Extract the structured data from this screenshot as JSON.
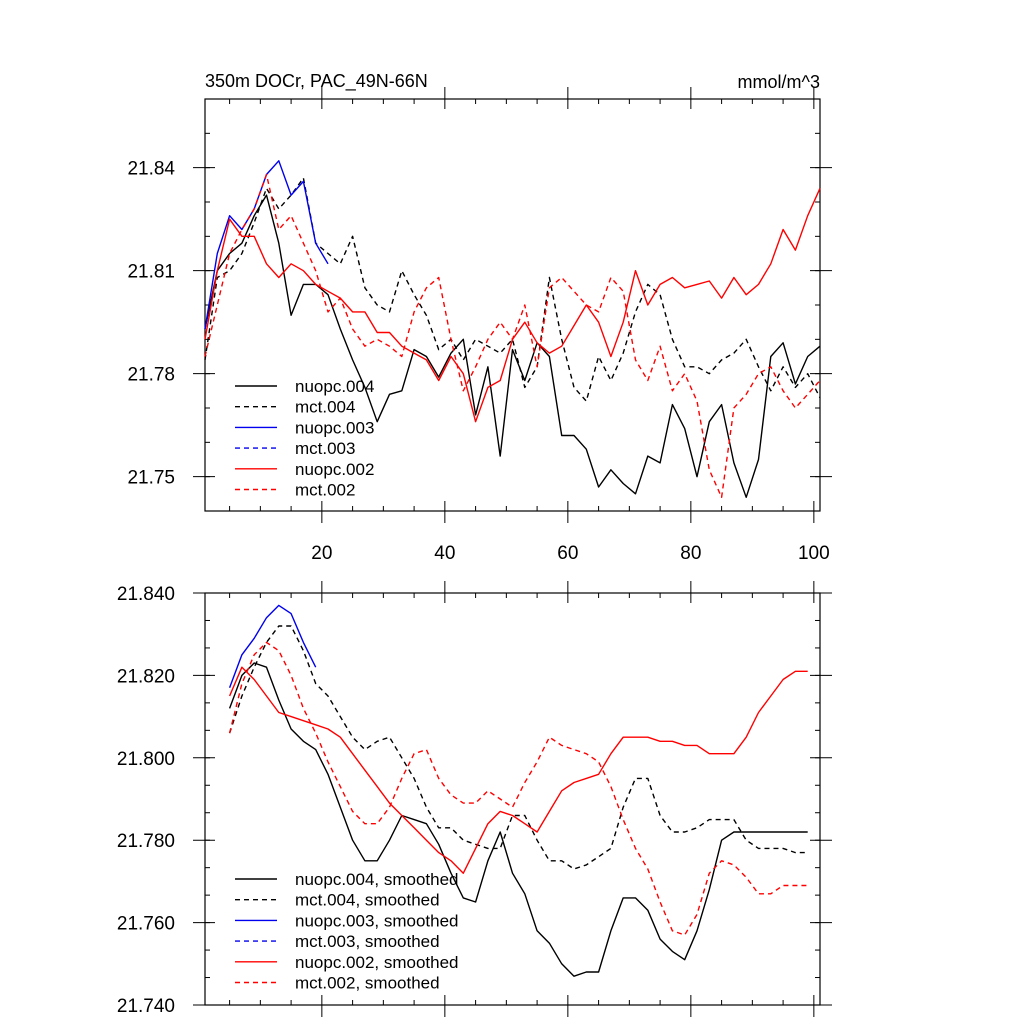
{
  "chart_data": [
    {
      "type": "line",
      "title": "350m DOCr, PAC_49N-66N",
      "units": "mmol/m^3",
      "xlim": [
        1,
        101
      ],
      "ylim": [
        21.74,
        21.86
      ],
      "xticks": [
        20,
        40,
        60,
        80,
        100
      ],
      "yticks": [
        21.75,
        21.78,
        21.81,
        21.84
      ],
      "ytick_labels": [
        "21.75",
        "21.78",
        "21.81",
        "21.84"
      ],
      "legend_position": "bottom-left",
      "series": [
        {
          "name": "nuopc.004",
          "color": "#000000",
          "dash": "solid",
          "x": [
            1,
            3,
            5,
            7,
            9,
            11,
            13,
            15,
            17,
            19,
            21,
            23,
            25,
            27,
            29,
            31,
            33,
            35,
            37,
            39,
            41,
            43,
            45,
            47,
            49,
            51,
            53,
            55,
            57,
            59,
            61,
            63,
            65,
            67,
            69,
            71,
            73,
            75,
            77,
            79,
            81,
            83,
            85,
            87,
            89,
            91,
            93,
            95,
            97,
            99,
            101
          ],
          "y": [
            21.793,
            21.81,
            21.815,
            21.818,
            21.826,
            21.832,
            21.818,
            21.797,
            21.806,
            21.806,
            21.803,
            21.793,
            21.784,
            21.776,
            21.766,
            21.774,
            21.775,
            21.787,
            21.785,
            21.779,
            21.786,
            21.79,
            21.768,
            21.782,
            21.756,
            21.787,
            21.778,
            21.789,
            21.785,
            21.762,
            21.762,
            21.758,
            21.747,
            21.752,
            21.748,
            21.745,
            21.756,
            21.754,
            21.771,
            21.764,
            21.75,
            21.766,
            21.771,
            21.754,
            21.744,
            21.755,
            21.785,
            21.789,
            21.777,
            21.785,
            21.788
          ]
        },
        {
          "name": "mct.004",
          "color": "#000000",
          "dash": "dashed",
          "x": [
            1,
            3,
            5,
            7,
            9,
            11,
            13,
            15,
            17,
            19,
            21,
            23,
            25,
            27,
            29,
            31,
            33,
            35,
            37,
            39,
            41,
            43,
            45,
            47,
            49,
            51,
            53,
            55,
            57,
            59,
            61,
            63,
            65,
            67,
            69,
            71,
            73,
            75,
            77,
            79,
            81,
            83,
            85,
            87,
            89,
            91,
            93,
            95,
            97,
            99,
            101
          ],
          "y": [
            21.784,
            21.808,
            21.81,
            21.815,
            21.824,
            21.834,
            21.828,
            21.832,
            21.837,
            21.818,
            21.815,
            21.812,
            21.82,
            21.805,
            21.8,
            21.798,
            21.81,
            21.803,
            21.797,
            21.787,
            21.79,
            21.784,
            21.79,
            21.788,
            21.786,
            21.79,
            21.776,
            21.782,
            21.808,
            21.79,
            21.776,
            21.772,
            21.785,
            21.778,
            21.786,
            21.798,
            21.806,
            21.803,
            21.79,
            21.782,
            21.782,
            21.78,
            21.784,
            21.786,
            21.79,
            21.782,
            21.775,
            21.782,
            21.776,
            21.78,
            21.773
          ]
        },
        {
          "name": "nuopc.003",
          "color": "#0000ee",
          "dash": "solid",
          "x": [
            1,
            3,
            5,
            7,
            9,
            11,
            13,
            15,
            17,
            19,
            21
          ],
          "y": [
            21.793,
            21.815,
            21.826,
            21.822,
            21.828,
            21.838,
            21.842,
            21.832,
            21.836,
            21.818,
            21.812
          ]
        },
        {
          "name": "mct.003",
          "color": "#0000ee",
          "dash": "dashed",
          "x": [],
          "y": []
        },
        {
          "name": "nuopc.002",
          "color": "#ff0000",
          "dash": "solid",
          "x": [
            1,
            3,
            5,
            7,
            9,
            11,
            13,
            15,
            17,
            19,
            21,
            23,
            25,
            27,
            29,
            31,
            33,
            35,
            37,
            39,
            41,
            43,
            45,
            47,
            49,
            51,
            53,
            55,
            57,
            59,
            61,
            63,
            65,
            67,
            69,
            71,
            73,
            75,
            77,
            79,
            81,
            83,
            85,
            87,
            89,
            91,
            93,
            95,
            97,
            99,
            101
          ],
          "y": [
            21.79,
            21.81,
            21.825,
            21.82,
            21.82,
            21.812,
            21.808,
            21.812,
            21.81,
            21.806,
            21.804,
            21.802,
            21.798,
            21.798,
            21.792,
            21.792,
            21.788,
            21.786,
            21.784,
            21.778,
            21.785,
            21.78,
            21.766,
            21.776,
            21.778,
            21.79,
            21.795,
            21.789,
            21.786,
            21.788,
            21.794,
            21.8,
            21.795,
            21.785,
            21.795,
            21.81,
            21.8,
            21.806,
            21.808,
            21.805,
            21.806,
            21.807,
            21.802,
            21.808,
            21.803,
            21.806,
            21.812,
            21.822,
            21.816,
            21.826,
            21.834
          ]
        },
        {
          "name": "mct.002",
          "color": "#ff0000",
          "dash": "dashed",
          "x": [
            1,
            3,
            5,
            7,
            9,
            11,
            13,
            15,
            17,
            19,
            21,
            23,
            25,
            27,
            29,
            31,
            33,
            35,
            37,
            39,
            41,
            43,
            45,
            47,
            49,
            51,
            53,
            55,
            57,
            59,
            61,
            63,
            65,
            67,
            69,
            71,
            73,
            75,
            77,
            79,
            81,
            83,
            85,
            87,
            89,
            91,
            93,
            95,
            97,
            99,
            101
          ],
          "y": [
            21.785,
            21.8,
            21.815,
            21.822,
            21.828,
            21.838,
            21.822,
            21.826,
            21.818,
            21.81,
            21.798,
            21.802,
            21.793,
            21.788,
            21.79,
            21.788,
            21.785,
            21.798,
            21.805,
            21.808,
            21.79,
            21.775,
            21.782,
            21.79,
            21.795,
            21.79,
            21.8,
            21.782,
            21.805,
            21.808,
            21.804,
            21.8,
            21.798,
            21.808,
            21.804,
            21.784,
            21.778,
            21.788,
            21.775,
            21.78,
            21.772,
            21.752,
            21.744,
            21.77,
            21.774,
            21.78,
            21.782,
            21.775,
            21.77,
            21.774,
            21.778
          ]
        }
      ]
    },
    {
      "type": "line",
      "xlim": [
        1,
        101
      ],
      "ylim": [
        21.74,
        21.84
      ],
      "xticks": [
        20,
        40,
        60,
        80,
        100
      ],
      "yticks": [
        21.74,
        21.76,
        21.78,
        21.8,
        21.82,
        21.84
      ],
      "ytick_labels": [
        "21.740",
        "21.760",
        "21.780",
        "21.800",
        "21.820",
        "21.840"
      ],
      "legend_position": "bottom-left",
      "series": [
        {
          "name": "nuopc.004, smoothed",
          "color": "#000000",
          "dash": "solid",
          "x": [
            5,
            7,
            9,
            11,
            13,
            15,
            17,
            19,
            21,
            23,
            25,
            27,
            29,
            31,
            33,
            35,
            37,
            39,
            41,
            43,
            45,
            47,
            49,
            51,
            53,
            55,
            57,
            59,
            61,
            63,
            65,
            67,
            69,
            71,
            73,
            75,
            77,
            79,
            81,
            83,
            85,
            87,
            89,
            91,
            93,
            95,
            97,
            99
          ],
          "y": [
            21.812,
            21.82,
            21.823,
            21.822,
            21.814,
            21.807,
            21.804,
            21.802,
            21.796,
            21.788,
            21.78,
            21.775,
            21.775,
            21.78,
            21.786,
            21.785,
            21.784,
            21.779,
            21.772,
            21.766,
            21.765,
            21.775,
            21.782,
            21.772,
            21.767,
            21.758,
            21.755,
            21.75,
            21.747,
            21.748,
            21.748,
            21.758,
            21.766,
            21.766,
            21.763,
            21.756,
            21.753,
            21.751,
            21.758,
            21.768,
            21.78,
            21.782,
            21.782,
            21.782,
            21.782,
            21.782,
            21.782,
            21.782
          ]
        },
        {
          "name": "mct.004, smoothed",
          "color": "#000000",
          "dash": "dashed",
          "x": [
            5,
            7,
            9,
            11,
            13,
            15,
            17,
            19,
            21,
            23,
            25,
            27,
            29,
            31,
            33,
            35,
            37,
            39,
            41,
            43,
            45,
            47,
            49,
            51,
            53,
            55,
            57,
            59,
            61,
            63,
            65,
            67,
            69,
            71,
            73,
            75,
            77,
            79,
            81,
            83,
            85,
            87,
            89,
            91,
            93,
            95,
            97,
            99
          ],
          "y": [
            21.806,
            21.815,
            21.822,
            21.828,
            21.832,
            21.832,
            21.826,
            21.818,
            21.815,
            21.81,
            21.805,
            21.802,
            21.804,
            21.805,
            21.8,
            21.795,
            21.788,
            21.783,
            21.783,
            21.78,
            21.779,
            21.778,
            21.778,
            21.786,
            21.786,
            21.78,
            21.775,
            21.775,
            21.773,
            21.774,
            21.776,
            21.778,
            21.788,
            21.795,
            21.795,
            21.786,
            21.782,
            21.782,
            21.783,
            21.785,
            21.785,
            21.785,
            21.78,
            21.778,
            21.778,
            21.778,
            21.777,
            21.777
          ]
        },
        {
          "name": "nuopc.003, smoothed",
          "color": "#0000ee",
          "dash": "solid",
          "x": [
            5,
            7,
            9,
            11,
            13,
            15,
            17,
            19
          ],
          "y": [
            21.817,
            21.825,
            21.829,
            21.834,
            21.837,
            21.835,
            21.828,
            21.822
          ]
        },
        {
          "name": "mct.003, smoothed",
          "color": "#0000ee",
          "dash": "dashed",
          "x": [],
          "y": []
        },
        {
          "name": "nuopc.002, smoothed",
          "color": "#ff0000",
          "dash": "solid",
          "x": [
            5,
            7,
            9,
            11,
            13,
            15,
            17,
            19,
            21,
            23,
            25,
            27,
            29,
            31,
            33,
            35,
            37,
            39,
            41,
            43,
            45,
            47,
            49,
            51,
            53,
            55,
            57,
            59,
            61,
            63,
            65,
            67,
            69,
            71,
            73,
            75,
            77,
            79,
            81,
            83,
            85,
            87,
            89,
            91,
            93,
            95,
            97,
            99
          ],
          "y": [
            21.815,
            21.822,
            21.819,
            21.815,
            21.811,
            21.81,
            21.809,
            21.808,
            21.807,
            21.805,
            21.801,
            21.797,
            21.793,
            21.789,
            21.786,
            21.783,
            21.78,
            21.777,
            21.775,
            21.772,
            21.778,
            21.784,
            21.787,
            21.786,
            21.784,
            21.782,
            21.787,
            21.792,
            21.794,
            21.795,
            21.796,
            21.801,
            21.805,
            21.805,
            21.805,
            21.804,
            21.804,
            21.803,
            21.803,
            21.801,
            21.801,
            21.801,
            21.805,
            21.811,
            21.815,
            21.819,
            21.821,
            21.821
          ]
        },
        {
          "name": "mct.002, smoothed",
          "color": "#ff0000",
          "dash": "dashed",
          "x": [
            5,
            7,
            9,
            11,
            13,
            15,
            17,
            19,
            21,
            23,
            25,
            27,
            29,
            31,
            33,
            35,
            37,
            39,
            41,
            43,
            45,
            47,
            49,
            51,
            53,
            55,
            57,
            59,
            61,
            63,
            65,
            67,
            69,
            71,
            73,
            75,
            77,
            79,
            81,
            83,
            85,
            87,
            89,
            91,
            93,
            95,
            97,
            99
          ],
          "y": [
            21.806,
            21.818,
            21.825,
            21.828,
            21.826,
            21.82,
            21.812,
            21.806,
            21.799,
            21.793,
            21.787,
            21.784,
            21.784,
            21.788,
            21.795,
            21.801,
            21.802,
            21.795,
            21.791,
            21.789,
            21.789,
            21.792,
            21.79,
            21.788,
            21.794,
            21.799,
            21.805,
            21.803,
            21.802,
            21.801,
            21.799,
            21.793,
            21.785,
            21.778,
            21.773,
            21.765,
            21.758,
            21.757,
            21.762,
            21.772,
            21.775,
            21.774,
            21.771,
            21.767,
            21.767,
            21.769,
            21.769,
            21.769
          ]
        }
      ]
    }
  ]
}
